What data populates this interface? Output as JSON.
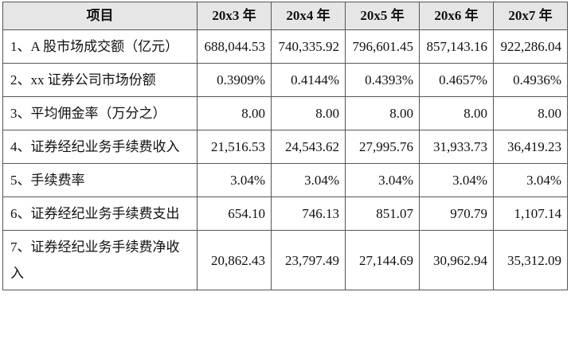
{
  "table": {
    "header": [
      "项目",
      "20x3 年",
      "20x4 年",
      "20x5 年",
      "20x6 年",
      "20x7 年"
    ],
    "rows": [
      [
        "1、A 股市场成交额（亿元）",
        "688,044.53",
        "740,335.92",
        "796,601.45",
        "857,143.16",
        "922,286.04"
      ],
      [
        "2、xx 证券公司市场份额",
        "0.3909%",
        "0.4144%",
        "0.4393%",
        "0.4657%",
        "0.4936%"
      ],
      [
        "3、平均佣金率（万分之）",
        "8.00",
        "8.00",
        "8.00",
        "8.00",
        "8.00"
      ],
      [
        "4、证券经纪业务手续费收入",
        "21,516.53",
        "24,543.62",
        "27,995.76",
        "31,933.73",
        "36,419.23"
      ],
      [
        "5、手续费率",
        "3.04%",
        "3.04%",
        "3.04%",
        "3.04%",
        "3.04%"
      ],
      [
        "6、证券经纪业务手续费支出",
        "654.10",
        "746.13",
        "851.07",
        "970.79",
        "1,107.14"
      ],
      [
        "7、证券经纪业务手续费净收入",
        "20,862.43",
        "23,797.49",
        "27,144.69",
        "30,962.94",
        "35,312.09"
      ]
    ]
  }
}
